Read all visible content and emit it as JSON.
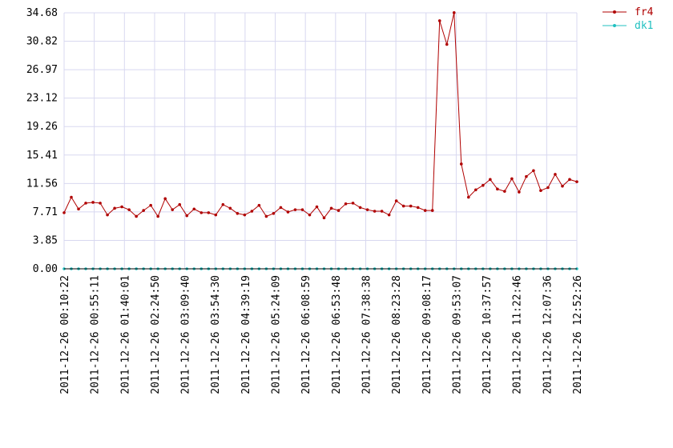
{
  "chart_data": {
    "type": "line",
    "ylim": [
      0,
      34.68
    ],
    "y_ticks": [
      "0.00",
      "3.85",
      "7.71",
      "11.56",
      "15.41",
      "19.26",
      "23.12",
      "26.97",
      "30.82",
      "34.68"
    ],
    "x_tick_labels": [
      "2011-12-26 00:10:22",
      "2011-12-26 00:55:11",
      "2011-12-26 01:40:01",
      "2011-12-26 02:24:50",
      "2011-12-26 03:09:40",
      "2011-12-26 03:54:30",
      "2011-12-26 04:39:19",
      "2011-12-26 05:24:09",
      "2011-12-26 06:08:59",
      "2011-12-26 06:53:48",
      "2011-12-26 07:38:38",
      "2011-12-26 08:23:28",
      "2011-12-26 09:08:17",
      "2011-12-26 09:53:07",
      "2011-12-26 10:37:57",
      "2011-12-26 11:22:46",
      "2011-12-26 12:07:36",
      "2011-12-26 12:52:26"
    ],
    "grid": true,
    "legend_position": "top-right",
    "series": [
      {
        "name": "fr4",
        "color": "#b00000",
        "values": [
          7.6,
          9.7,
          8.1,
          8.9,
          9.0,
          8.9,
          7.3,
          8.2,
          8.4,
          8.0,
          7.1,
          7.9,
          8.6,
          7.1,
          9.5,
          8.0,
          8.7,
          7.2,
          8.1,
          7.6,
          7.6,
          7.3,
          8.7,
          8.2,
          7.5,
          7.3,
          7.8,
          8.6,
          7.1,
          7.5,
          8.3,
          7.7,
          8.0,
          8.0,
          7.3,
          8.4,
          6.9,
          8.2,
          7.9,
          8.8,
          8.9,
          8.3,
          8.0,
          7.8,
          7.8,
          7.3,
          9.2,
          8.5,
          8.5,
          8.3,
          7.9,
          7.9,
          33.6,
          30.4,
          34.7,
          14.2,
          9.7,
          10.7,
          11.3,
          12.1,
          10.8,
          10.5,
          12.2,
          10.4,
          12.5,
          13.3,
          10.6,
          11.0,
          12.8,
          11.2,
          12.1,
          11.8
        ]
      },
      {
        "name": "dk1",
        "color": "#20c0c0",
        "values": [
          0,
          0,
          0,
          0,
          0,
          0,
          0,
          0,
          0,
          0,
          0,
          0,
          0,
          0,
          0,
          0,
          0,
          0,
          0,
          0,
          0,
          0,
          0,
          0,
          0,
          0,
          0,
          0,
          0,
          0,
          0,
          0,
          0,
          0,
          0,
          0,
          0,
          0,
          0,
          0,
          0,
          0,
          0,
          0,
          0,
          0,
          0,
          0,
          0,
          0,
          0,
          0,
          0,
          0,
          0,
          0,
          0,
          0,
          0,
          0,
          0,
          0,
          0,
          0,
          0,
          0,
          0,
          0,
          0,
          0,
          0,
          0
        ]
      }
    ]
  }
}
